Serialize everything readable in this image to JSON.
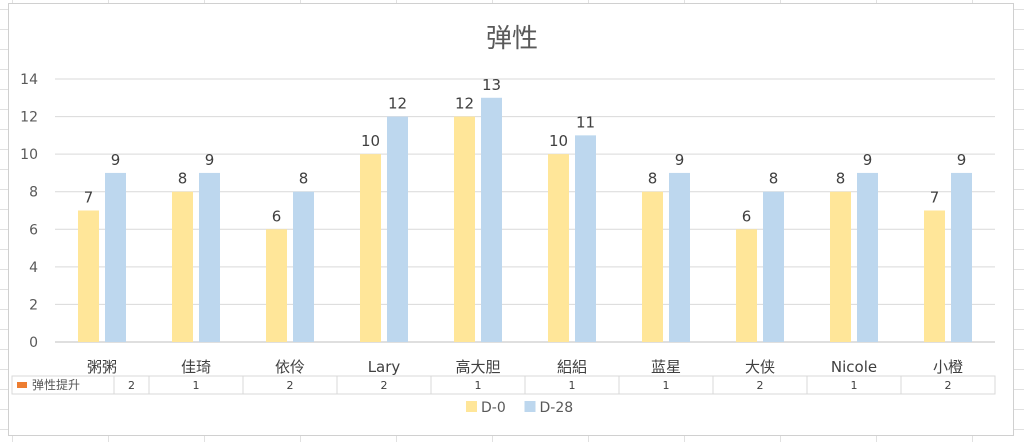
{
  "chart_data": {
    "type": "bar",
    "title": "弹性",
    "categories": [
      "粥粥",
      "佳琦",
      "依伶",
      "Lary",
      "高大胆",
      "絽絽",
      "蓝星",
      "大侠",
      "Nicole",
      "小橙"
    ],
    "series": [
      {
        "name": "D-0",
        "values": [
          7,
          8,
          6,
          10,
          12,
          10,
          8,
          6,
          8,
          7
        ],
        "color": "#FFE699"
      },
      {
        "name": "D-28",
        "values": [
          9,
          9,
          8,
          12,
          13,
          11,
          9,
          8,
          9,
          9
        ],
        "color": "#BDD7EE"
      }
    ],
    "ylim": [
      0,
      14
    ],
    "yticks": [
      0,
      2,
      4,
      6,
      8,
      10,
      12,
      14
    ],
    "xlabel": "",
    "ylabel": "",
    "grid": true,
    "legend_position": "bottom",
    "data_table": {
      "row_label": "弹性提升",
      "marker_color": "#ED7D31",
      "values": [
        2,
        1,
        2,
        2,
        1,
        1,
        1,
        2,
        1,
        2
      ]
    }
  }
}
